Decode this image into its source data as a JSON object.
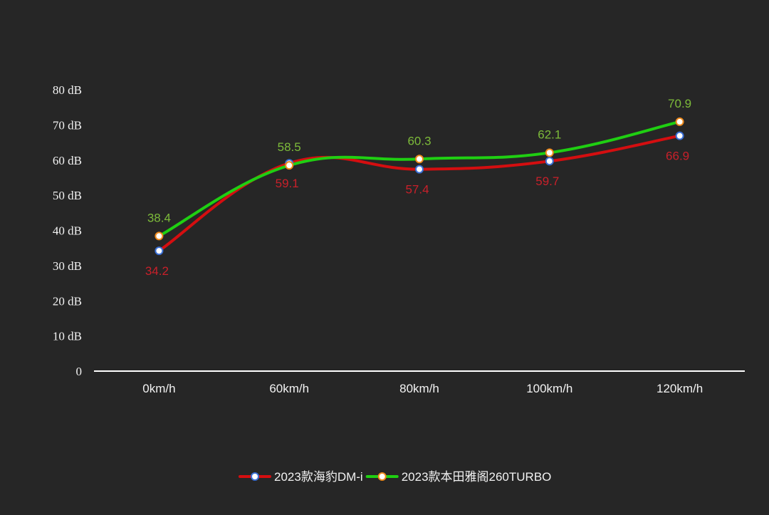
{
  "chart_data": {
    "type": "line",
    "categories": [
      "0km/h",
      "60km/h",
      "80km/h",
      "100km/h",
      "120km/h"
    ],
    "y_ticks": [
      "0",
      "10 dB",
      "20 dB",
      "30 dB",
      "40 dB",
      "50 dB",
      "60 dB",
      "70 dB",
      "80 dB"
    ],
    "ylim": [
      0,
      80
    ],
    "grid": false,
    "legend_position": "bottom",
    "series": [
      {
        "name": "2023款海豹DM-i",
        "values": [
          34.2,
          59.1,
          57.4,
          59.7,
          66.9
        ],
        "value_labels": [
          "34.2",
          "59.1",
          "57.4",
          "59.7",
          "66.9"
        ],
        "color": "#d40e10",
        "label_color": "#c9202a",
        "marker_stroke": "#3a6fd6",
        "label_position": "below"
      },
      {
        "name": "2023款本田雅阁260TURBO",
        "values": [
          38.4,
          58.5,
          60.3,
          62.1,
          70.9
        ],
        "value_labels": [
          "38.4",
          "58.5",
          "60.3",
          "62.1",
          "70.9"
        ],
        "color": "#1fcf12",
        "label_color": "#7dbb3a",
        "marker_stroke": "#ef8a1c",
        "label_position": "above"
      }
    ]
  }
}
